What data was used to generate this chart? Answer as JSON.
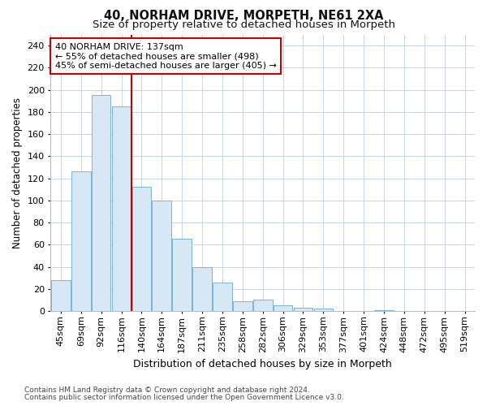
{
  "title1": "40, NORHAM DRIVE, MORPETH, NE61 2XA",
  "title2": "Size of property relative to detached houses in Morpeth",
  "xlabel": "Distribution of detached houses by size in Morpeth",
  "ylabel": "Number of detached properties",
  "bins": [
    "45sqm",
    "69sqm",
    "92sqm",
    "116sqm",
    "140sqm",
    "164sqm",
    "187sqm",
    "211sqm",
    "235sqm",
    "258sqm",
    "282sqm",
    "306sqm",
    "329sqm",
    "353sqm",
    "377sqm",
    "401sqm",
    "424sqm",
    "448sqm",
    "472sqm",
    "495sqm",
    "519sqm"
  ],
  "values": [
    28,
    126,
    195,
    185,
    112,
    100,
    65,
    40,
    26,
    9,
    10,
    5,
    3,
    2,
    0,
    0,
    1,
    0,
    0,
    0,
    0
  ],
  "bar_color": "#d6e8f5",
  "bar_edge_color": "#7ab4d8",
  "vline_color": "#cc0000",
  "vline_x": 3.5,
  "annotation_text": "40 NORHAM DRIVE: 137sqm\n← 55% of detached houses are smaller (498)\n45% of semi-detached houses are larger (405) →",
  "annotation_box_color": "white",
  "annotation_box_edge": "#cc0000",
  "ylim": [
    0,
    250
  ],
  "yticks": [
    0,
    20,
    40,
    60,
    80,
    100,
    120,
    140,
    160,
    180,
    200,
    220,
    240
  ],
  "footer1": "Contains HM Land Registry data © Crown copyright and database right 2024.",
  "footer2": "Contains public sector information licensed under the Open Government Licence v3.0.",
  "bg_color": "#ffffff",
  "plot_bg_color": "#ffffff",
  "grid_color": "#c8d4e0",
  "title1_fontsize": 10.5,
  "title2_fontsize": 9.5,
  "xlabel_fontsize": 9,
  "ylabel_fontsize": 8.5,
  "tick_fontsize": 8,
  "annotation_fontsize": 8,
  "footer_fontsize": 6.5
}
